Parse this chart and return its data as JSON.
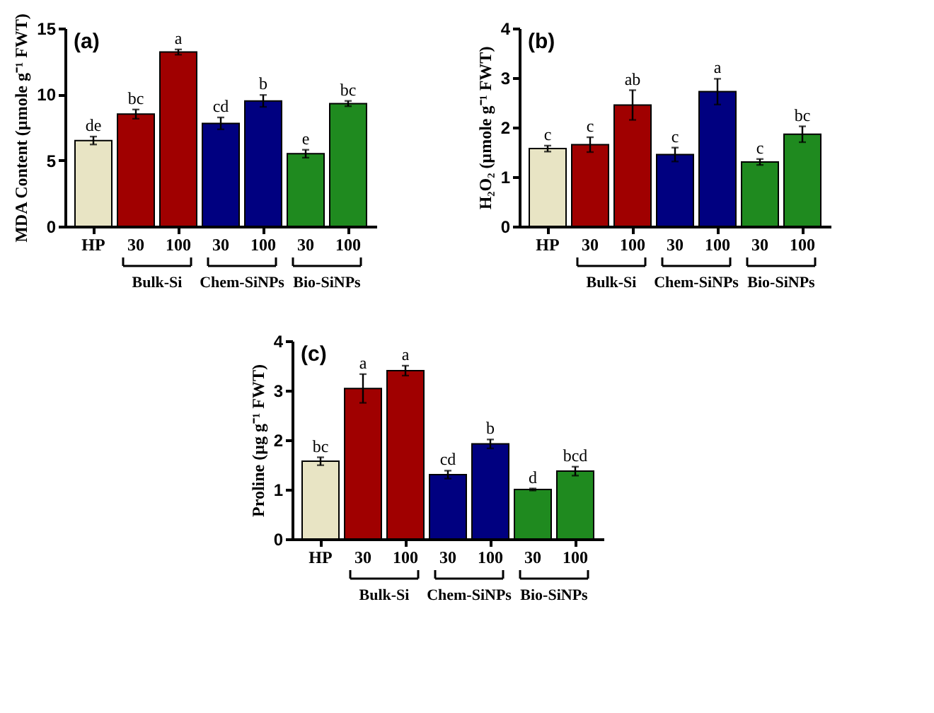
{
  "chart_data": [
    {
      "type": "bar",
      "title": "(a)",
      "ylabel": "MDA Content (µmole g⁻¹ FWT)",
      "categories": [
        "HP",
        "30",
        "100",
        "30",
        "100",
        "30",
        "100"
      ],
      "values": [
        6.5,
        8.5,
        13.2,
        7.8,
        9.5,
        5.5,
        9.3
      ],
      "errors": [
        0.3,
        0.35,
        0.2,
        0.45,
        0.45,
        0.3,
        0.2
      ],
      "value_labels": [
        "de",
        "bc",
        "a",
        "cd",
        "b",
        "e",
        "bc"
      ],
      "colors": [
        "#e8e4c4",
        "#a00000",
        "#a00000",
        "#000080",
        "#000080",
        "#1f8a1f",
        "#1f8a1f"
      ],
      "ylim": [
        0,
        15
      ],
      "yticks": [
        0,
        5,
        10,
        15
      ],
      "grid": false,
      "annotations": [
        "Bulk-Si",
        "Chem-SiNPs",
        "Bio-SiNPs"
      ]
    },
    {
      "type": "bar",
      "title": "(b)",
      "ylabel": "H₂O₂ (µmole g⁻¹ FWT)",
      "categories": [
        "HP",
        "30",
        "100",
        "30",
        "100",
        "30",
        "100"
      ],
      "values": [
        1.57,
        1.65,
        2.45,
        1.45,
        2.72,
        1.3,
        1.86
      ],
      "errors": [
        0.06,
        0.15,
        0.3,
        0.14,
        0.26,
        0.06,
        0.16
      ],
      "value_labels": [
        "c",
        "c",
        "ab",
        "c",
        "a",
        "c",
        "bc"
      ],
      "colors": [
        "#e8e4c4",
        "#a00000",
        "#a00000",
        "#000080",
        "#000080",
        "#1f8a1f",
        "#1f8a1f"
      ],
      "ylim": [
        0,
        4
      ],
      "yticks": [
        0,
        1,
        2,
        3,
        4
      ],
      "grid": false,
      "annotations": [
        "Bulk-Si",
        "Chem-SiNPs",
        "Bio-SiNPs"
      ]
    },
    {
      "type": "bar",
      "title": "(c)",
      "ylabel": "Proline (µg g⁻¹ FWT)",
      "categories": [
        "HP",
        "30",
        "100",
        "30",
        "100",
        "30",
        "100"
      ],
      "values": [
        1.57,
        3.04,
        3.4,
        1.3,
        1.92,
        1.0,
        1.37
      ],
      "errors": [
        0.08,
        0.29,
        0.1,
        0.08,
        0.09,
        0.02,
        0.09
      ],
      "value_labels": [
        "bc",
        "a",
        "a",
        "cd",
        "b",
        "d",
        "bcd"
      ],
      "colors": [
        "#e8e4c4",
        "#a00000",
        "#a00000",
        "#000080",
        "#000080",
        "#1f8a1f",
        "#1f8a1f"
      ],
      "ylim": [
        0,
        4
      ],
      "yticks": [
        0,
        1,
        2,
        3,
        4
      ],
      "grid": false,
      "annotations": [
        "Bulk-Si",
        "Chem-SiNPs",
        "Bio-SiNPs"
      ]
    }
  ]
}
